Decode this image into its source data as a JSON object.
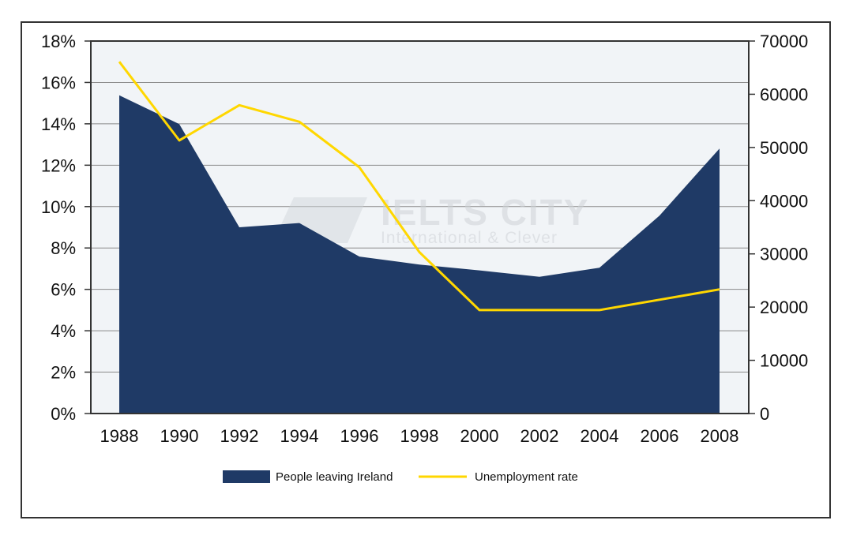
{
  "chart_data": {
    "type": "area+line",
    "title": "",
    "categories": [
      "1988",
      "1990",
      "1992",
      "1994",
      "1996",
      "1998",
      "2000",
      "2002",
      "2004",
      "2006",
      "2008"
    ],
    "series": [
      {
        "name": "People leaving Ireland",
        "kind": "area",
        "axis": "right",
        "color": "#1f3a66",
        "values": [
          59800,
          54400,
          35000,
          35800,
          29500,
          28000,
          26900,
          25700,
          27400,
          37200,
          49800
        ]
      },
      {
        "name": "Unemployment rate",
        "kind": "line",
        "axis": "left",
        "color": "#ffd700",
        "values": [
          17.0,
          13.2,
          14.9,
          14.1,
          11.9,
          7.8,
          5.0,
          5.0,
          5.0,
          5.5,
          6.0
        ]
      }
    ],
    "left_axis": {
      "min": 0,
      "max": 18,
      "step": 2,
      "tick_labels": [
        "0%",
        "2%",
        "4%",
        "6%",
        "8%",
        "10%",
        "12%",
        "14%",
        "16%",
        "18%"
      ]
    },
    "right_axis": {
      "min": 0,
      "max": 70000,
      "step": 10000,
      "tick_labels": [
        "0",
        "10000",
        "20000",
        "30000",
        "40000",
        "50000",
        "60000",
        "70000"
      ]
    },
    "grid": true,
    "legend_position": "bottom"
  },
  "legend": {
    "items": [
      {
        "label": "People leaving Ireland",
        "swatch": "area",
        "color": "#1f3a66"
      },
      {
        "label": "Unemployment rate",
        "swatch": "line",
        "color": "#ffd700"
      }
    ]
  },
  "watermark": {
    "title": "IELTS CITY",
    "subtitle": "International & Clever"
  },
  "colors": {
    "plot_bg": "#f1f4f7",
    "grid": "#8a8a8a",
    "axis": "#333333"
  }
}
